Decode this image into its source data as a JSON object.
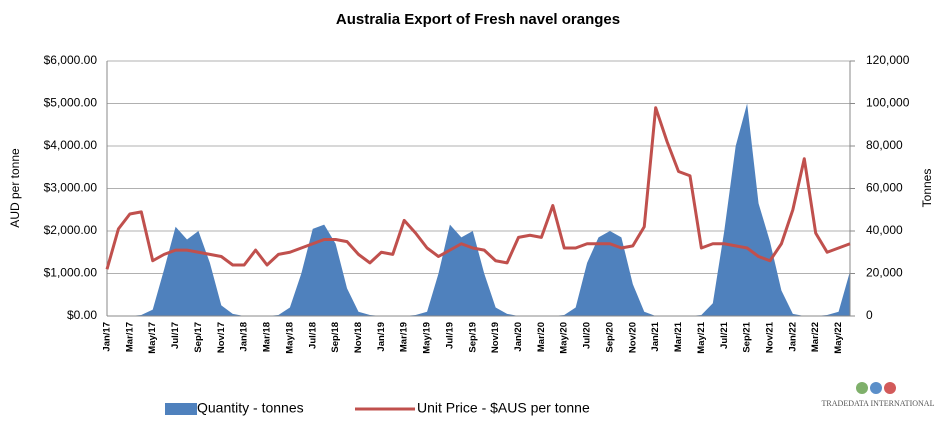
{
  "chart_data": {
    "type": "area-line",
    "title": "Australia Export of Fresh navel oranges",
    "ylabel": "AUD per tonne",
    "y2label": "Tonnes",
    "watermark": "TRADEDATA INTERNATIONAL",
    "categories": [
      "Jan/17",
      null,
      "Mar/17",
      null,
      "May/17",
      null,
      "Jul/17",
      null,
      "Sep/17",
      null,
      "Nov/17",
      null,
      "Jan/18",
      null,
      "Mar/18",
      null,
      "May/18",
      null,
      "Jul/18",
      null,
      "Sep/18",
      null,
      "Nov/18",
      null,
      "Jan/19",
      null,
      "Mar/19",
      null,
      "May/19",
      null,
      "Jul/19",
      null,
      "Sep/19",
      null,
      "Nov/19",
      null,
      "Jan/20",
      null,
      "Mar/20",
      null,
      "May/20",
      null,
      "Jul/20",
      null,
      "Sep/20",
      null,
      "Nov/20",
      null,
      "Jan/21",
      null,
      "Mar/21",
      null,
      "May/21",
      null,
      "Jul/21",
      null,
      "Sep/21",
      null,
      "Nov/21",
      null,
      "Jan/22",
      null,
      "Mar/22",
      null,
      "May/22",
      null
    ],
    "series": [
      {
        "name": "Quantity - tonnes",
        "color": "#4f81bd",
        "axis": "y2",
        "kind": "area",
        "values": [
          0,
          0,
          0,
          500,
          3000,
          22000,
          42000,
          36000,
          40000,
          25000,
          5000,
          1000,
          0,
          0,
          0,
          500,
          4000,
          20000,
          41000,
          43000,
          34000,
          13000,
          2000,
          500,
          0,
          0,
          0,
          500,
          2000,
          20000,
          43000,
          37000,
          40000,
          20000,
          4000,
          1000,
          0,
          0,
          0,
          0,
          500,
          4000,
          25000,
          37000,
          40000,
          37000,
          15000,
          2000,
          0,
          0,
          0,
          0,
          500,
          6000,
          40000,
          80000,
          100000,
          53000,
          35000,
          12000,
          1000,
          0,
          0,
          500,
          2000,
          21000
        ]
      },
      {
        "name": "Unit Price - $AUS per tonne",
        "color": "#c0504d",
        "axis": "y",
        "kind": "line",
        "values": [
          1100,
          2050,
          2400,
          2450,
          1300,
          1450,
          1550,
          1550,
          1500,
          1450,
          1400,
          1200,
          1200,
          1550,
          1200,
          1450,
          1500,
          1600,
          1700,
          1800,
          1800,
          1750,
          1450,
          1250,
          1500,
          1450,
          2250,
          1950,
          1600,
          1400,
          1550,
          1700,
          1600,
          1550,
          1300,
          1250,
          1850,
          1900,
          1850,
          2600,
          1600,
          1600,
          1700,
          1700,
          1700,
          1600,
          1650,
          2100,
          4900,
          4100,
          3400,
          3300,
          1600,
          1700,
          1700,
          1650,
          1600,
          1400,
          1300,
          1700,
          2500,
          3700,
          1950,
          1500,
          1600,
          1700
        ]
      }
    ],
    "ylim": [
      0,
      6000
    ],
    "yticks": [
      {
        "value": 0,
        "label": "$0.00"
      },
      {
        "value": 1000,
        "label": "$1,000.00"
      },
      {
        "value": 2000,
        "label": "$2,000.00"
      },
      {
        "value": 3000,
        "label": "$3,000.00"
      },
      {
        "value": 4000,
        "label": "$4,000.00"
      },
      {
        "value": 5000,
        "label": "$5,000.00"
      },
      {
        "value": 6000,
        "label": "$6,000.00"
      }
    ],
    "y2lim": [
      0,
      120000
    ],
    "y2ticks": [
      0,
      {
        "value": 20000,
        "label": "20,000"
      },
      {
        "value": 40000,
        "label": "40,000"
      },
      {
        "value": 60000,
        "label": "60,000"
      },
      {
        "value": 80000,
        "label": "80,000"
      },
      {
        "value": 100000,
        "label": "100,000"
      },
      {
        "value": 120000,
        "label": "120,000"
      }
    ],
    "grid": true,
    "legend": "bottom"
  }
}
